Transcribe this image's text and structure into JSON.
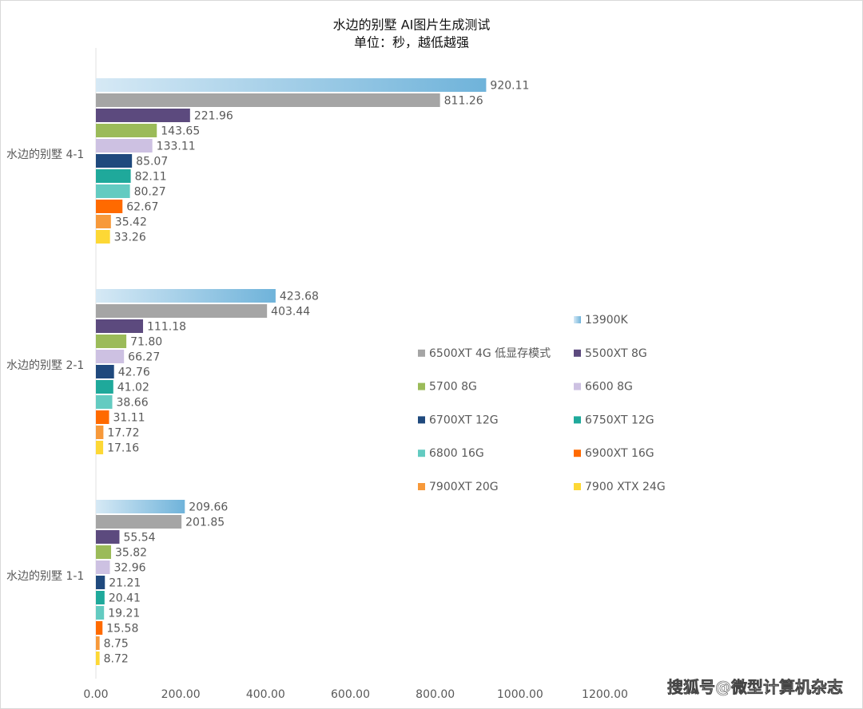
{
  "chart_data": {
    "type": "hbar",
    "title": "水边的别墅 AI图片生成测试",
    "subtitle": "单位：秒，越低越强",
    "categories": [
      "水边的别墅 4-1",
      "水边的别墅 2-1",
      "水边的别墅 1-1"
    ],
    "series": [
      {
        "name": "13900K",
        "color": "#6fb3da",
        "gradient": true,
        "values": [
          920.11,
          423.68,
          209.66
        ],
        "value_labels": [
          "920.11",
          "423.68",
          "209.66"
        ]
      },
      {
        "name": "6500XT 4G 低显存模式",
        "color": "#a5a5a5",
        "values": [
          811.26,
          403.44,
          201.85
        ],
        "value_labels": [
          "811.26",
          "403.44",
          "201.85"
        ]
      },
      {
        "name": "5500XT 8G",
        "color": "#5c4a7e",
        "values": [
          221.96,
          111.18,
          55.54
        ],
        "value_labels": [
          "221.96",
          "111.18",
          "55.54"
        ]
      },
      {
        "name": "5700 8G",
        "color": "#9bbb59",
        "values": [
          143.65,
          71.8,
          35.82
        ],
        "value_labels": [
          "143.65",
          "71.80",
          "35.82"
        ]
      },
      {
        "name": "6600 8G",
        "color": "#cdc1e2",
        "values": [
          133.11,
          66.27,
          32.96
        ],
        "value_labels": [
          "133.11",
          "66.27",
          "32.96"
        ]
      },
      {
        "name": "6700XT 12G",
        "color": "#1f497d",
        "values": [
          85.07,
          42.76,
          21.21
        ],
        "value_labels": [
          "85.07",
          "42.76",
          "21.21"
        ]
      },
      {
        "name": "6750XT 12G",
        "color": "#1fa99b",
        "values": [
          82.11,
          41.02,
          20.41
        ],
        "value_labels": [
          "82.11",
          "41.02",
          "20.41"
        ]
      },
      {
        "name": "6800 16G",
        "color": "#63cbc1",
        "values": [
          80.27,
          38.66,
          19.21
        ],
        "value_labels": [
          "80.27",
          "38.66",
          "19.21"
        ]
      },
      {
        "name": "6900XT 16G",
        "color": "#ff6a00",
        "values": [
          62.67,
          31.11,
          15.58
        ],
        "value_labels": [
          "62.67",
          "31.11",
          "15.58"
        ]
      },
      {
        "name": "7900XT 20G",
        "color": "#f7993a",
        "values": [
          35.42,
          17.72,
          8.75
        ],
        "value_labels": [
          "35.42",
          "17.72",
          "8.75"
        ]
      },
      {
        "name": "7900 XTX 24G",
        "color": "#fdd835",
        "values": [
          33.26,
          17.16,
          8.72
        ],
        "value_labels": [
          "33.26",
          "17.16",
          "8.72"
        ]
      }
    ],
    "xlim": [
      0,
      1200
    ],
    "xticks": [
      {
        "value": 0,
        "label": "0.00"
      },
      {
        "value": 200,
        "label": "200.00"
      },
      {
        "value": 400,
        "label": "400.00"
      },
      {
        "value": 600,
        "label": "600.00"
      },
      {
        "value": 800,
        "label": "800.00"
      },
      {
        "value": 1000,
        "label": "1000.00"
      },
      {
        "value": 1200,
        "label": "1200.00"
      }
    ],
    "legend": "right",
    "watermark": "搜狐号@微型计算机杂志"
  }
}
